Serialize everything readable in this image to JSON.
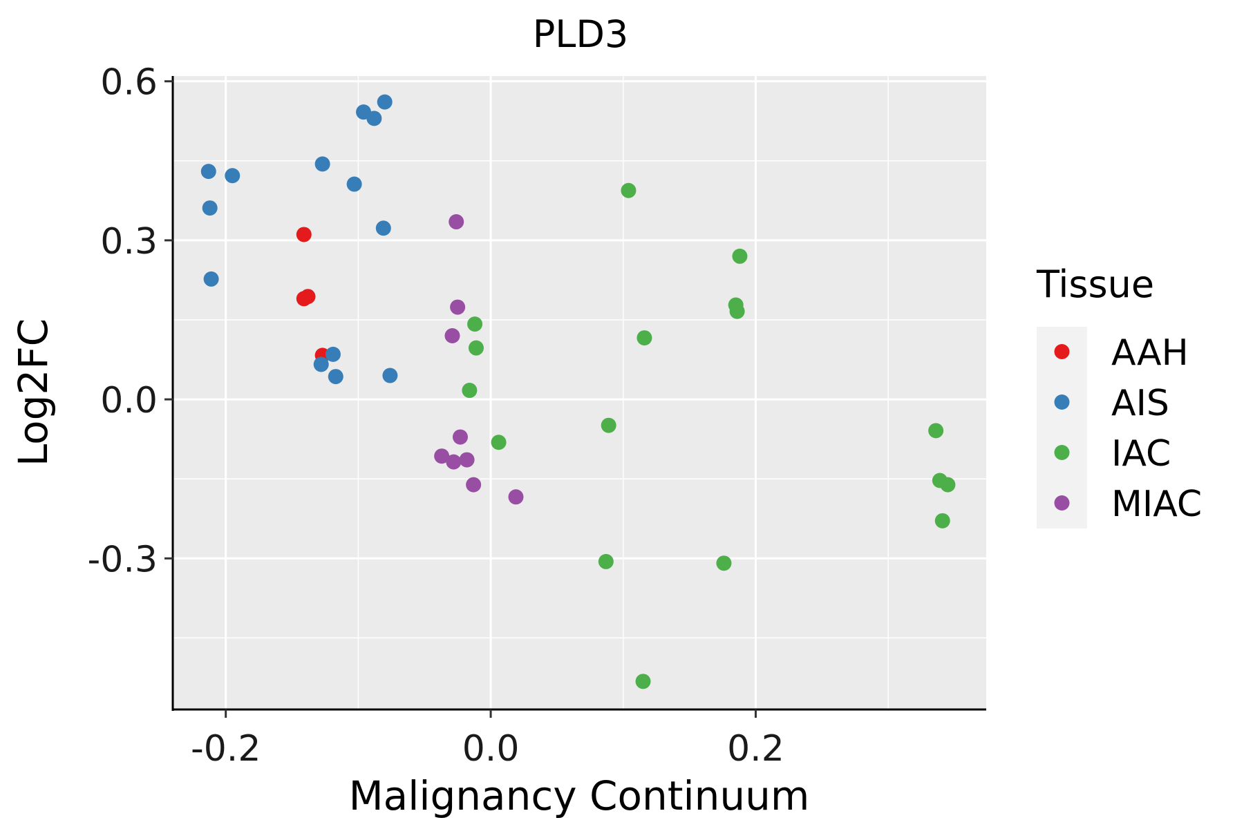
{
  "chart_data": {
    "type": "scatter",
    "title": "PLD3",
    "xlabel": "Malignancy Continuum",
    "ylabel": "Log2FC",
    "xlim": [
      -0.24,
      0.374
    ],
    "ylim": [
      -0.585,
      0.61
    ],
    "x_ticks": [
      -0.2,
      0.0,
      0.2
    ],
    "x_tick_labels": [
      "-0.2",
      "0.0",
      "0.2"
    ],
    "y_ticks": [
      -0.3,
      0.0,
      0.3,
      0.6
    ],
    "y_tick_labels": [
      "-0.3",
      "0.0",
      "0.3",
      "0.6"
    ],
    "x_minor_grid": [
      -0.1,
      0.1,
      0.3
    ],
    "y_minor_grid": [
      -0.45,
      -0.15,
      0.15,
      0.45
    ],
    "grid": true,
    "legend": {
      "title": "Tissue",
      "position": "right"
    },
    "series": [
      {
        "name": "AAH",
        "color": "#E41A1C",
        "points": [
          {
            "x": -0.141,
            "y": 0.311
          },
          {
            "x": -0.141,
            "y": 0.19
          },
          {
            "x": -0.138,
            "y": 0.194
          },
          {
            "x": -0.127,
            "y": 0.083
          }
        ]
      },
      {
        "name": "AIS",
        "color": "#377EB8",
        "points": [
          {
            "x": -0.213,
            "y": 0.43
          },
          {
            "x": -0.195,
            "y": 0.422
          },
          {
            "x": -0.212,
            "y": 0.361
          },
          {
            "x": -0.211,
            "y": 0.227
          },
          {
            "x": -0.127,
            "y": 0.444
          },
          {
            "x": -0.103,
            "y": 0.406
          },
          {
            "x": -0.096,
            "y": 0.542
          },
          {
            "x": -0.088,
            "y": 0.53
          },
          {
            "x": -0.08,
            "y": 0.561
          },
          {
            "x": -0.081,
            "y": 0.323
          },
          {
            "x": -0.119,
            "y": 0.085
          },
          {
            "x": -0.128,
            "y": 0.066
          },
          {
            "x": -0.117,
            "y": 0.043
          },
          {
            "x": -0.076,
            "y": 0.045
          }
        ]
      },
      {
        "name": "IAC",
        "color": "#4DAF4A",
        "points": [
          {
            "x": 0.104,
            "y": 0.394
          },
          {
            "x": 0.188,
            "y": 0.27
          },
          {
            "x": 0.185,
            "y": 0.178
          },
          {
            "x": 0.186,
            "y": 0.166
          },
          {
            "x": 0.116,
            "y": 0.116
          },
          {
            "x": -0.012,
            "y": 0.142
          },
          {
            "x": -0.011,
            "y": 0.097
          },
          {
            "x": -0.016,
            "y": 0.017
          },
          {
            "x": 0.006,
            "y": -0.081
          },
          {
            "x": 0.089,
            "y": -0.049
          },
          {
            "x": 0.087,
            "y": -0.306
          },
          {
            "x": 0.176,
            "y": -0.309
          },
          {
            "x": 0.115,
            "y": -0.532
          },
          {
            "x": 0.336,
            "y": -0.059
          },
          {
            "x": 0.339,
            "y": -0.153
          },
          {
            "x": 0.345,
            "y": -0.161
          },
          {
            "x": 0.341,
            "y": -0.229
          }
        ]
      },
      {
        "name": "MIAC",
        "color": "#984EA3",
        "points": [
          {
            "x": -0.026,
            "y": 0.335
          },
          {
            "x": -0.025,
            "y": 0.174
          },
          {
            "x": -0.029,
            "y": 0.12
          },
          {
            "x": -0.023,
            "y": -0.071
          },
          {
            "x": -0.037,
            "y": -0.107
          },
          {
            "x": -0.028,
            "y": -0.118
          },
          {
            "x": -0.018,
            "y": -0.114
          },
          {
            "x": -0.013,
            "y": -0.161
          },
          {
            "x": 0.019,
            "y": -0.184
          }
        ]
      }
    ]
  }
}
